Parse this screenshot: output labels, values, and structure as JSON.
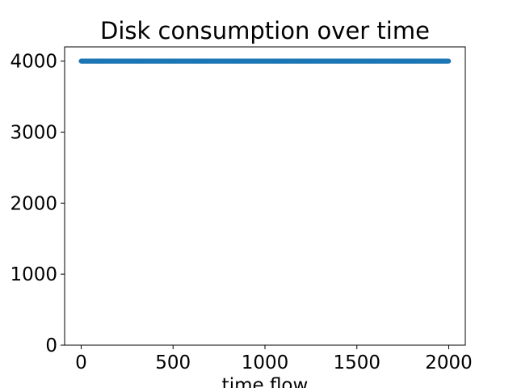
{
  "chart_data": {
    "type": "scatter",
    "title": "Disk consumption over time",
    "xlabel": "time flow",
    "ylabel": "",
    "xlim": [
      -90,
      2090
    ],
    "ylim": [
      0,
      4200
    ],
    "xticks": [
      0,
      500,
      1000,
      1500,
      2000
    ],
    "yticks": [
      0,
      1000,
      2000,
      3000,
      4000
    ],
    "xtick_labels": [
      "0",
      "500",
      "1000",
      "1500",
      "2000"
    ],
    "ytick_labels": [
      "0",
      "1000",
      "2000",
      "3000",
      "4000"
    ],
    "grid": false,
    "series": [
      {
        "color": "#1f77b4",
        "x_start": 0,
        "x_end": 1999,
        "x_step": 1,
        "y_constant": 4000
      }
    ]
  }
}
